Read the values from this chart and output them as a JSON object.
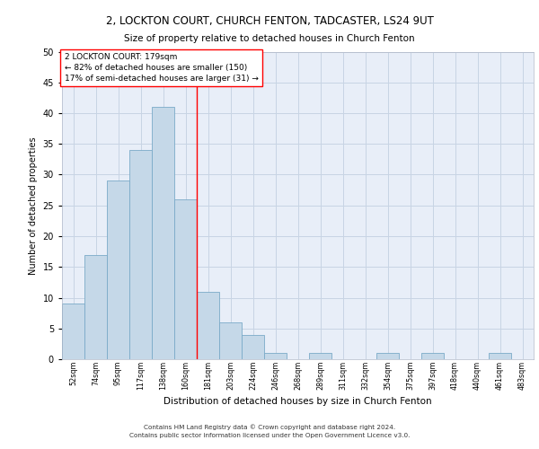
{
  "title1": "2, LOCKTON COURT, CHURCH FENTON, TADCASTER, LS24 9UT",
  "title2": "Size of property relative to detached houses in Church Fenton",
  "xlabel": "Distribution of detached houses by size in Church Fenton",
  "ylabel": "Number of detached properties",
  "bin_labels": [
    "52sqm",
    "74sqm",
    "95sqm",
    "117sqm",
    "138sqm",
    "160sqm",
    "181sqm",
    "203sqm",
    "224sqm",
    "246sqm",
    "268sqm",
    "289sqm",
    "311sqm",
    "332sqm",
    "354sqm",
    "375sqm",
    "397sqm",
    "418sqm",
    "440sqm",
    "461sqm",
    "483sqm"
  ],
  "bar_heights": [
    9,
    17,
    29,
    34,
    41,
    26,
    11,
    6,
    4,
    1,
    0,
    1,
    0,
    0,
    1,
    0,
    1,
    0,
    0,
    1,
    0
  ],
  "bar_color": "#c5d8e8",
  "bar_edge_color": "#7aaac8",
  "property_label": "2 LOCKTON COURT: 179sqm",
  "vline_x": 5.5,
  "annotation_line1": "2 LOCKTON COURT: 179sqm",
  "annotation_line2": "← 82% of detached houses are smaller (150)",
  "annotation_line3": "17% of semi-detached houses are larger (31) →",
  "ylim": [
    0,
    50
  ],
  "yticks": [
    0,
    5,
    10,
    15,
    20,
    25,
    30,
    35,
    40,
    45,
    50
  ],
  "grid_color": "#c8d4e4",
  "background_color": "#e8eef8",
  "footer1": "Contains HM Land Registry data © Crown copyright and database right 2024.",
  "footer2": "Contains public sector information licensed under the Open Government Licence v3.0."
}
